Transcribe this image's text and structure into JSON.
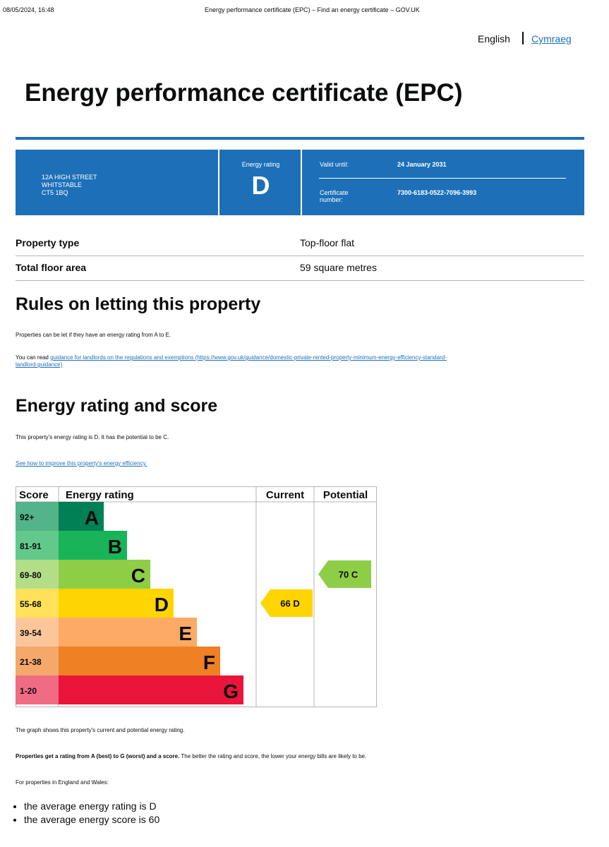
{
  "print_header": {
    "datetime": "08/05/2024, 16:48",
    "page_title": "Energy performance certificate (EPC) – Find an energy certificate – GOV.UK"
  },
  "language": {
    "current": "English",
    "alternate": "Cymraeg"
  },
  "title": "Energy performance certificate (EPC)",
  "summary": {
    "address_lines": [
      "12A HIGH STREET",
      "WHITSTABLE",
      "CT5 1BQ"
    ],
    "energy_rating_label": "Energy rating",
    "energy_rating": "D",
    "valid_until_label": "Valid until:",
    "valid_until": "24 January 2031",
    "certificate_label_lines": [
      "Certificate",
      "number:"
    ],
    "certificate_number": "7300-6183-0522-7096-3993"
  },
  "property": [
    {
      "key": "Property type",
      "value": "Top-floor flat"
    },
    {
      "key": "Total floor area",
      "value": "59 square metres"
    }
  ],
  "rules": {
    "heading": "Rules on letting this property",
    "text": "Properties can be let if they have an energy rating from A to E.",
    "read_prefix": "You can read",
    "link_line1": "guidance for landlords on the regulations and exemptions (https://www.gov.uk/guidance/domestic-private-rented-property-minimum-energy-efficiency-standard-",
    "link_line2": "landlord-guidance)"
  },
  "energy": {
    "heading": "Energy rating and score",
    "text": "This property's energy rating is D. It has the potential to be C.",
    "improve_link": "See how to improve this property's energy efficiency."
  },
  "chart_data": {
    "type": "table",
    "headers": [
      "Score",
      "Energy rating",
      "Current",
      "Potential"
    ],
    "bands": [
      {
        "score": "92+",
        "letter": "A",
        "color": "#008054",
        "score_bg": "#53b389"
      },
      {
        "score": "81-91",
        "letter": "B",
        "color": "#19b459",
        "score_bg": "#63c98b"
      },
      {
        "score": "69-80",
        "letter": "C",
        "color": "#8dce46",
        "score_bg": "#b3de88"
      },
      {
        "score": "55-68",
        "letter": "D",
        "color": "#ffd500",
        "score_bg": "#ffe25a"
      },
      {
        "score": "39-54",
        "letter": "E",
        "color": "#fcaa65",
        "score_bg": "#fdc69a"
      },
      {
        "score": "21-38",
        "letter": "F",
        "color": "#ef8023",
        "score_bg": "#f4a86a"
      },
      {
        "score": "1-20",
        "letter": "G",
        "color": "#e9153b",
        "score_bg": "#f06b84"
      }
    ],
    "current": {
      "score": 66,
      "letter": "D",
      "label": "66 D",
      "color": "#ffd500"
    },
    "potential": {
      "score": 70,
      "letter": "C",
      "label": "70 C",
      "color": "#8dce46"
    }
  },
  "after_chart": {
    "graph_note": "The graph shows this property's current and potential energy rating.",
    "bold_text": "Properties get a rating from A (best) to G (worst) and a score.",
    "rest_text": " The better the rating and score, the lower your energy bills are likely to be.",
    "region_intro": "For properties in England and Wales:",
    "bullets": [
      "the average energy rating is D",
      "the average energy score is 60"
    ]
  }
}
